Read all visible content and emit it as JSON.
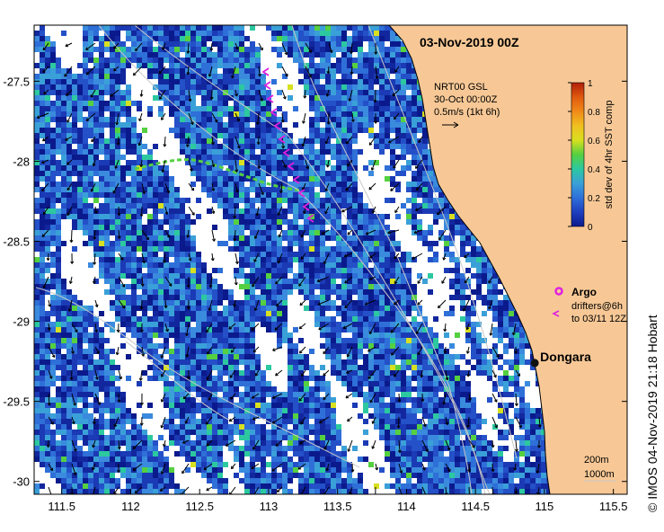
{
  "map": {
    "title": "03-Nov-2019 00Z",
    "credit": "© IMOS 04-Nov-2019 21:18 Hobart",
    "x_axis": {
      "ticks": [
        "111.5",
        "112",
        "112.5",
        "113",
        "113.5",
        "114",
        "114.5",
        "115",
        "115.5"
      ],
      "tick_values": [
        111.5,
        112,
        112.5,
        113,
        113.5,
        114,
        114.5,
        115,
        115.5
      ],
      "range": [
        111.3,
        115.6
      ]
    },
    "y_axis": {
      "ticks": [
        "-27.5",
        "-28",
        "-28.5",
        "-29",
        "-29.5",
        "-30"
      ],
      "tick_values": [
        -27.5,
        -28,
        -28.5,
        -29,
        -29.5,
        -30
      ],
      "range": [
        -30.08,
        -27.15
      ]
    },
    "current_legend": {
      "line1": "NRT00 GSL",
      "line2": "30-Oct 00:00Z",
      "line3": "0.5m/s (1kt 6h)"
    },
    "colorbar": {
      "label": "std dev of 4hr SST comp",
      "ticks": [
        "0",
        "0.2",
        "0.4",
        "0.6",
        "0.8",
        "1"
      ],
      "tick_values": [
        0,
        0.2,
        0.4,
        0.6,
        0.8,
        1
      ],
      "colors": [
        "#0a1a8c",
        "#1f3fbf",
        "#2e6fd8",
        "#3aa0d8",
        "#2cc8a0",
        "#55d040",
        "#d8e020",
        "#f0a020",
        "#e05a10",
        "#b01e08"
      ]
    },
    "argo_legend": {
      "label": "Argo",
      "drifters_line1": "drifters@6h",
      "drifters_line2": "to 03/11 12Z",
      "argo_color": "#e020e0"
    },
    "place": {
      "name": "Dongara",
      "lon": 114.93,
      "lat": -29.26
    },
    "isobath_legend": {
      "line1": "200m",
      "line2": "1000m"
    },
    "colors": {
      "land": "#f7c896",
      "no_data": "#ffffff",
      "coast": "#000000"
    }
  }
}
